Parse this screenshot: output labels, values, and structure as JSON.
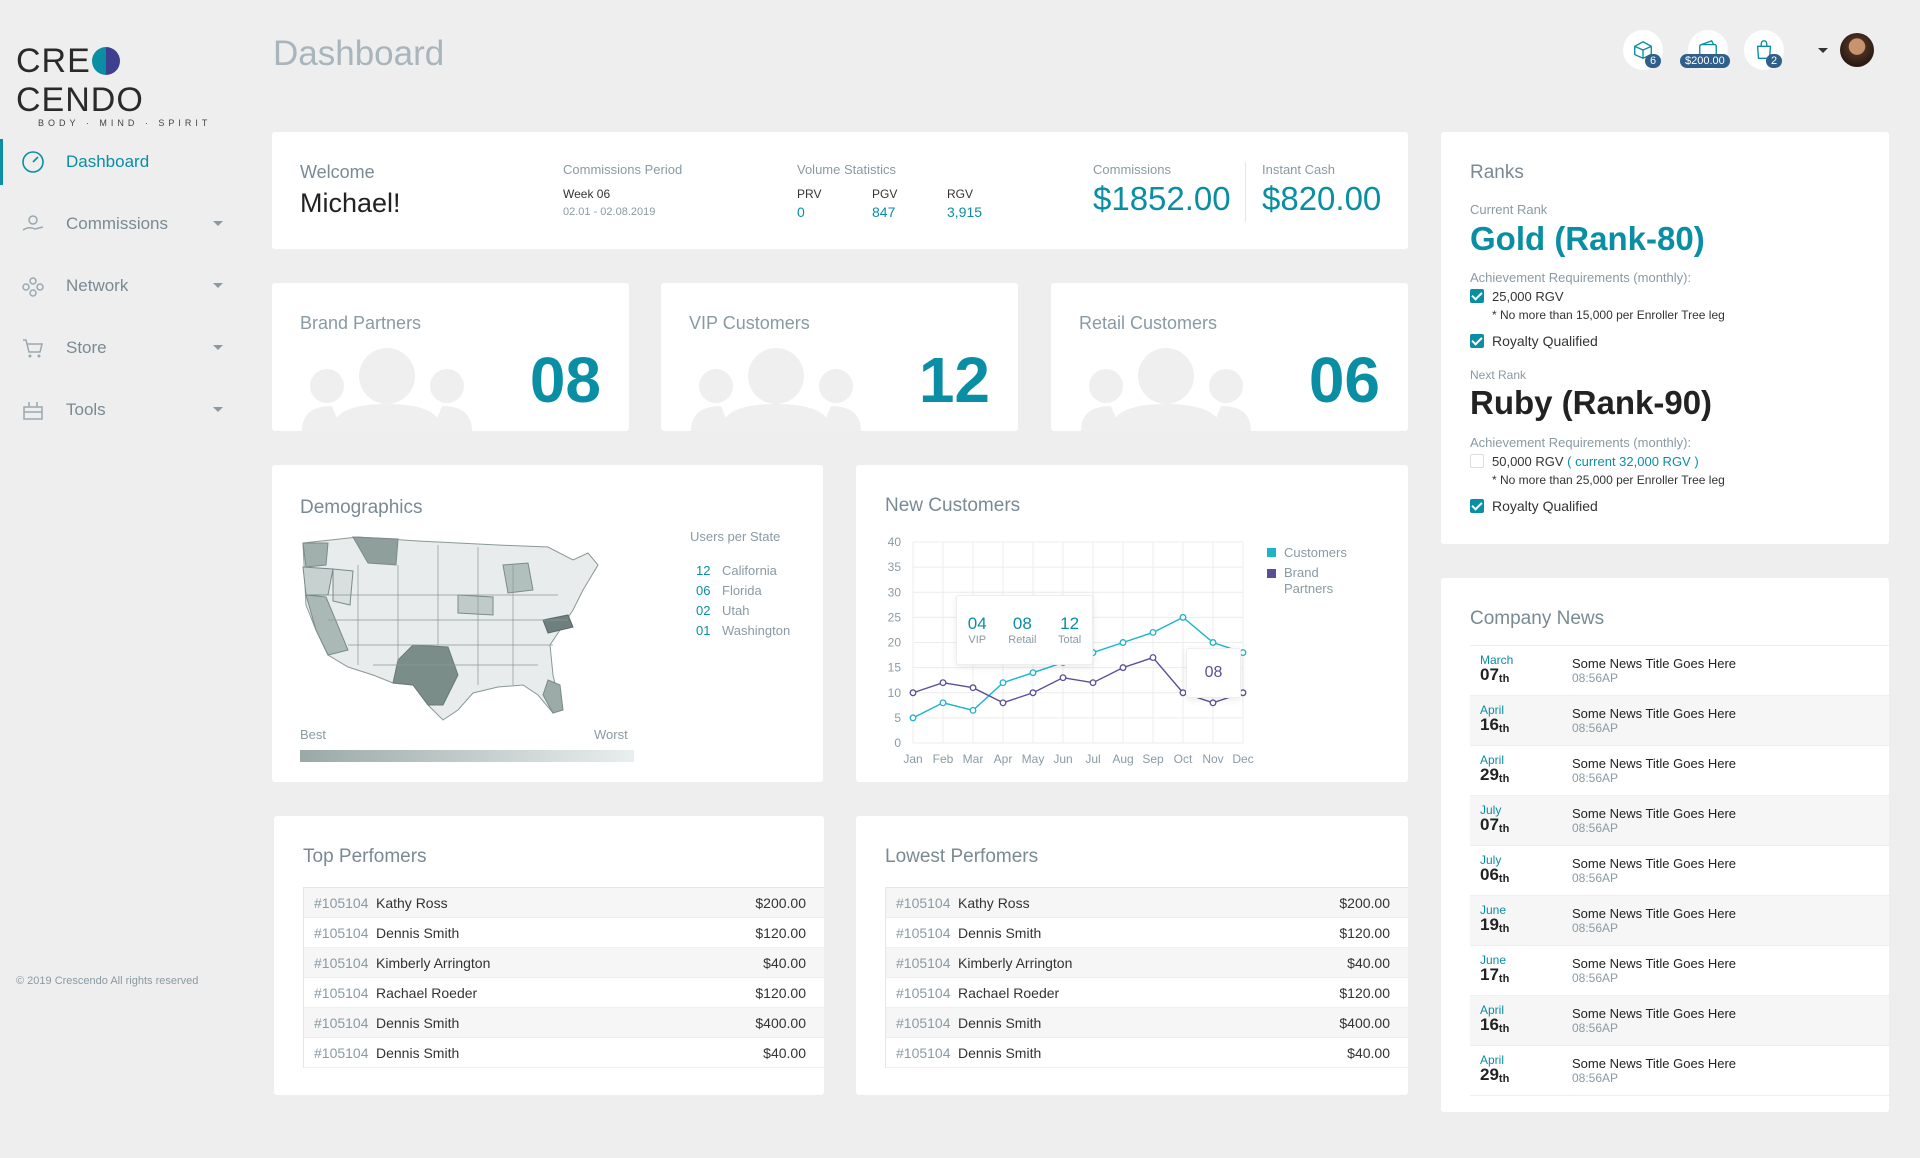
{
  "brand": {
    "logo_text_1": "CRE",
    "logo_text_2": "CENDO",
    "tagline": "BODY · MIND · SPIRIT"
  },
  "page_title": "Dashboard",
  "nav": [
    {
      "label": "Dashboard",
      "icon": "dashboard-gauge-icon",
      "active": true
    },
    {
      "label": "Commissions",
      "icon": "hand-coins-icon"
    },
    {
      "label": "Network",
      "icon": "network-people-icon"
    },
    {
      "label": "Store",
      "icon": "cart-icon"
    },
    {
      "label": "Tools",
      "icon": "tools-icon"
    }
  ],
  "footer": "© 2019 Crescendo All rights reserved",
  "topbar": {
    "box_badge": "6",
    "wallet_badge": "$200.00",
    "bag_badge": "2"
  },
  "welcome": {
    "greeting": "Welcome",
    "name": "Michael!",
    "period_label": "Commissions Period",
    "period_week": "Week 06",
    "period_dates": "02.01 - 02.08.2019",
    "volume_label": "Volume Statistics",
    "prv_label": "PRV",
    "prv": "0",
    "pgv_label": "PGV",
    "pgv": "847",
    "rgv_label": "RGV",
    "rgv": "3,915",
    "commissions_label": "Commissions",
    "commissions": "$1852.00",
    "cash_label": "Instant Cash",
    "cash": "$820.00"
  },
  "stats": [
    {
      "label": "Brand Partners",
      "value": "08"
    },
    {
      "label": "VIP Customers",
      "value": "12"
    },
    {
      "label": "Retail Customers",
      "value": "06"
    }
  ],
  "demographics": {
    "title": "Demographics",
    "users_label": "Users per State",
    "states": [
      {
        "n": "12",
        "s": "California"
      },
      {
        "n": "06",
        "s": "Florida"
      },
      {
        "n": "02",
        "s": "Utah"
      },
      {
        "n": "01",
        "s": "Washington"
      }
    ],
    "best": "Best",
    "worst": "Worst"
  },
  "new_customers": {
    "title": "New Customers",
    "tooltip": {
      "vip": "04",
      "vip_label": "VIP",
      "retail": "08",
      "retail_label": "Retail",
      "total": "12",
      "total_label": "Total",
      "point": "08"
    }
  },
  "chart_data": {
    "type": "line",
    "title": "New Customers",
    "categories": [
      "Jan",
      "Feb",
      "Mar",
      "Apr",
      "May",
      "Jun",
      "Jul",
      "Aug",
      "Sep",
      "Oct",
      "Nov",
      "Dec"
    ],
    "ylim": [
      0,
      40
    ],
    "yticks": [
      0,
      5,
      10,
      15,
      20,
      25,
      30,
      35,
      40
    ],
    "series": [
      {
        "name": "Customers",
        "color": "#1fb3c8",
        "values": [
          5,
          8,
          6.5,
          12,
          14,
          16,
          18,
          20,
          22,
          25,
          20,
          18
        ]
      },
      {
        "name": "Brand Partners",
        "color": "#5b4e96",
        "values": [
          10,
          12,
          11,
          8,
          10,
          13,
          12,
          15,
          17,
          10,
          8,
          10
        ]
      }
    ],
    "legend": "right",
    "grid": true
  },
  "top_performers": {
    "title": "Top Perfomers",
    "rows": [
      {
        "id": "#105104",
        "name": "Kathy Ross",
        "amt": "$200.00"
      },
      {
        "id": "#105104",
        "name": "Dennis Smith",
        "amt": "$120.00"
      },
      {
        "id": "#105104",
        "name": "Kimberly Arrington",
        "amt": "$40.00"
      },
      {
        "id": "#105104",
        "name": "Rachael Roeder",
        "amt": "$120.00"
      },
      {
        "id": "#105104",
        "name": "Dennis Smith",
        "amt": "$400.00"
      },
      {
        "id": "#105104",
        "name": "Dennis Smith",
        "amt": "$40.00"
      }
    ]
  },
  "lowest_performers": {
    "title": "Lowest Perfomers",
    "rows": [
      {
        "id": "#105104",
        "name": "Kathy Ross",
        "amt": "$200.00"
      },
      {
        "id": "#105104",
        "name": "Dennis Smith",
        "amt": "$120.00"
      },
      {
        "id": "#105104",
        "name": "Kimberly Arrington",
        "amt": "$40.00"
      },
      {
        "id": "#105104",
        "name": "Rachael Roeder",
        "amt": "$120.00"
      },
      {
        "id": "#105104",
        "name": "Dennis Smith",
        "amt": "$400.00"
      },
      {
        "id": "#105104",
        "name": "Dennis Smith",
        "amt": "$40.00"
      }
    ]
  },
  "ranks": {
    "title": "Ranks",
    "current_label": "Current Rank",
    "current": "Gold (Rank-80)",
    "req_label": "Achievement Requirements (monthly):",
    "cur_req1": "25,000 RGV",
    "cur_note": "* No more than 15,000 per Enroller Tree leg",
    "cur_req2": "Royalty Qualified",
    "next_label": "Next Rank",
    "next": "Ruby (Rank-90)",
    "next_req1": "50,000 RGV",
    "next_req1_current": "( current 32,000 RGV )",
    "next_note": "* No more than 25,000 per Enroller Tree leg",
    "next_req2": "Royalty Qualified"
  },
  "news": {
    "title": "Company News",
    "items": [
      {
        "month": "March",
        "day": "07",
        "suf": "th",
        "title": "Some News Title Goes Here",
        "time": "08:56AP"
      },
      {
        "month": "April",
        "day": "16",
        "suf": "th",
        "title": "Some News Title Goes Here",
        "time": "08:56AP"
      },
      {
        "month": "April",
        "day": "29",
        "suf": "th",
        "title": "Some News Title Goes Here",
        "time": "08:56AP"
      },
      {
        "month": "July",
        "day": "07",
        "suf": "th",
        "title": "Some News Title Goes Here",
        "time": "08:56AP"
      },
      {
        "month": "July",
        "day": "06",
        "suf": "th",
        "title": "Some News Title Goes Here",
        "time": "08:56AP"
      },
      {
        "month": "June",
        "day": "19",
        "suf": "th",
        "title": "Some News Title Goes Here",
        "time": "08:56AP"
      },
      {
        "month": "June",
        "day": "17",
        "suf": "th",
        "title": "Some News Title Goes Here",
        "time": "08:56AP"
      },
      {
        "month": "April",
        "day": "16",
        "suf": "th",
        "title": "Some News Title Goes Here",
        "time": "08:56AP"
      },
      {
        "month": "April",
        "day": "29",
        "suf": "th",
        "title": "Some News Title Goes Here",
        "time": "08:56AP"
      }
    ]
  }
}
